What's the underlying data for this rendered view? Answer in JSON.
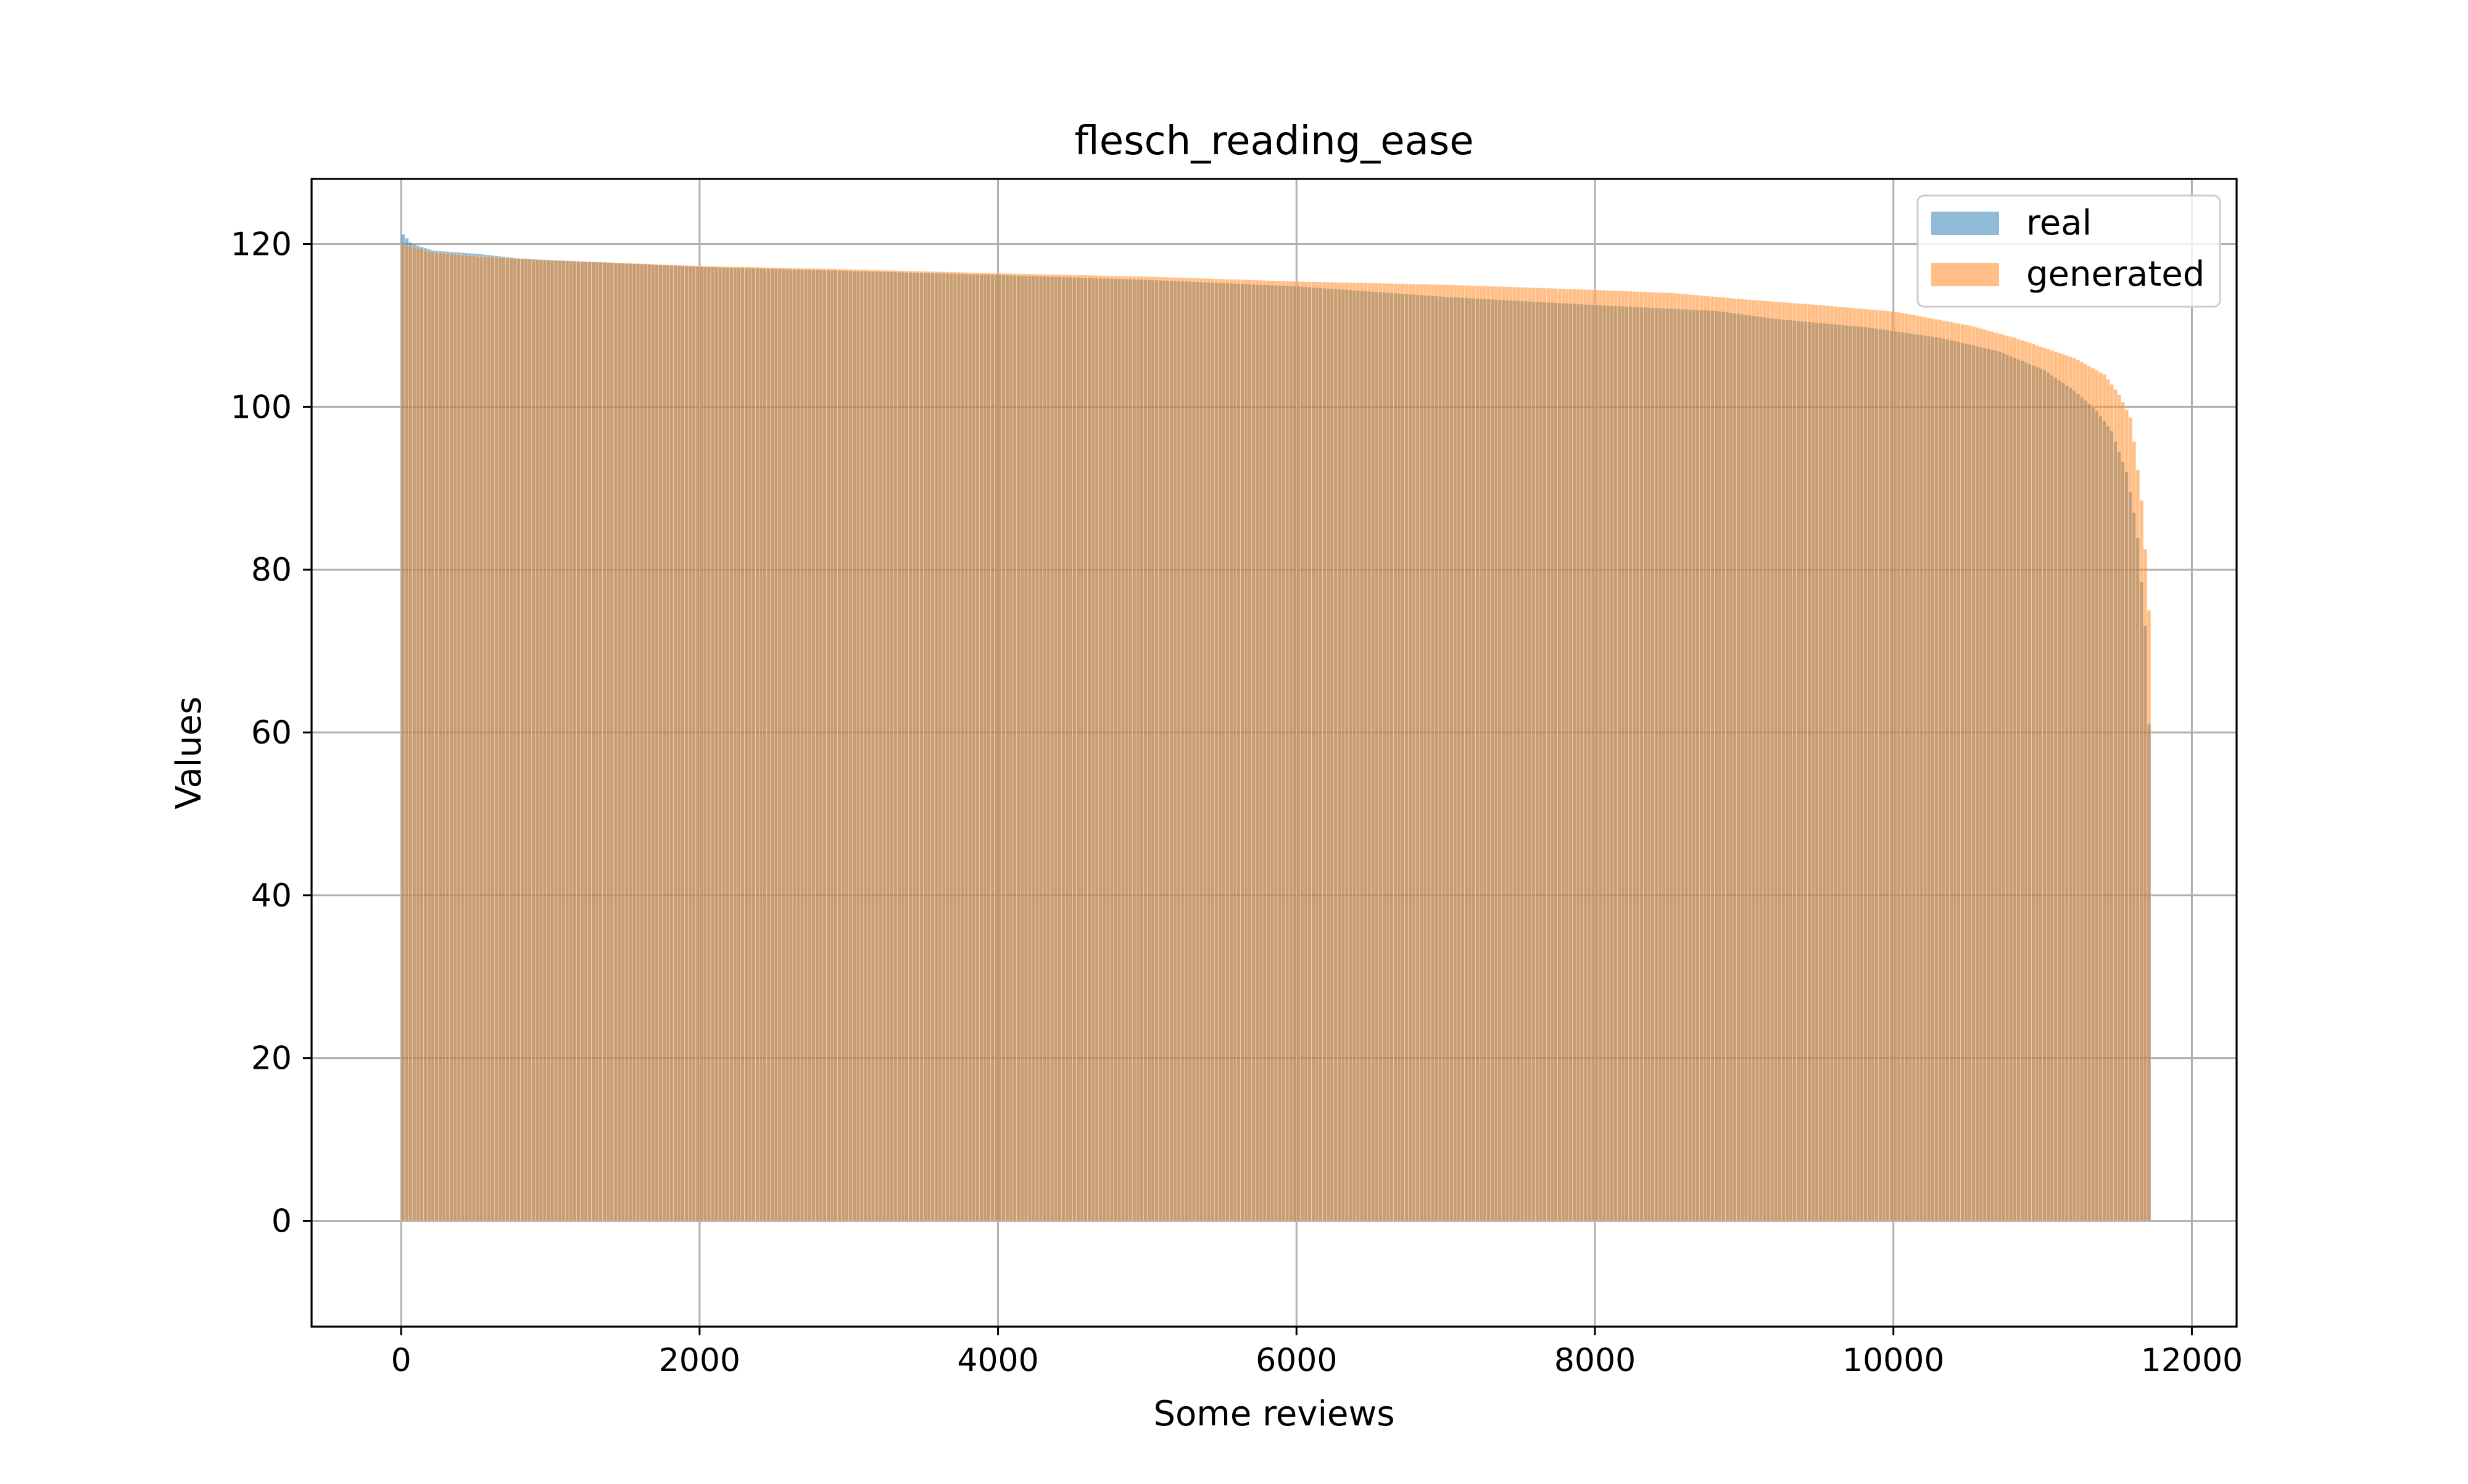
{
  "chart_data": {
    "type": "bar",
    "title": "flesch_reading_ease",
    "xlabel": "Some reviews",
    "ylabel": "Values",
    "xlim": [
      -600,
      12300
    ],
    "ylim": [
      -13,
      128
    ],
    "x_ticks": [
      0,
      2000,
      4000,
      6000,
      8000,
      10000,
      12000
    ],
    "x_tick_labels": [
      "0",
      "2000",
      "4000",
      "6000",
      "8000",
      "10000",
      "12000"
    ],
    "y_ticks": [
      0,
      20,
      40,
      60,
      80,
      100,
      120
    ],
    "y_tick_labels": [
      "0",
      "20",
      "40",
      "60",
      "80",
      "100",
      "120"
    ],
    "grid": true,
    "legend_position": "upper right",
    "legend": [
      "real",
      "generated"
    ],
    "sorted_descending": true,
    "series": [
      {
        "name": "real",
        "color": "#1f77b4",
        "opacity": 0.5,
        "n_points": 11720,
        "profile": [
          [
            0,
            121.2
          ],
          [
            50,
            120.2
          ],
          [
            100,
            119.8
          ],
          [
            200,
            119.2
          ],
          [
            500,
            118.8
          ],
          [
            800,
            118.2
          ],
          [
            1300,
            117.8
          ],
          [
            2000,
            117.2
          ],
          [
            3000,
            116.7
          ],
          [
            4000,
            116.2
          ],
          [
            5000,
            115.6
          ],
          [
            6000,
            114.8
          ],
          [
            7000,
            113.5
          ],
          [
            8000,
            112.5
          ],
          [
            8800,
            111.8
          ],
          [
            9200,
            110.8
          ],
          [
            9800,
            109.8
          ],
          [
            10300,
            108.5
          ],
          [
            10700,
            106.8
          ],
          [
            11000,
            104.5
          ],
          [
            11200,
            102.0
          ],
          [
            11350,
            99.5
          ],
          [
            11450,
            97.0
          ],
          [
            11550,
            92.0
          ],
          [
            11620,
            85.0
          ],
          [
            11680,
            72.0
          ],
          [
            11720,
            50.0
          ]
        ]
      },
      {
        "name": "generated",
        "color": "#ff7f0e",
        "opacity": 0.5,
        "n_points": 11720,
        "profile": [
          [
            0,
            120.0
          ],
          [
            200,
            119.0
          ],
          [
            500,
            118.5
          ],
          [
            1000,
            118.0
          ],
          [
            2000,
            117.3
          ],
          [
            3000,
            116.9
          ],
          [
            4000,
            116.4
          ],
          [
            5000,
            116.0
          ],
          [
            6000,
            115.4
          ],
          [
            7000,
            115.0
          ],
          [
            7800,
            114.5
          ],
          [
            8500,
            114.0
          ],
          [
            9000,
            113.2
          ],
          [
            9500,
            112.5
          ],
          [
            10000,
            111.7
          ],
          [
            10500,
            110.0
          ],
          [
            10800,
            108.5
          ],
          [
            11200,
            106.0
          ],
          [
            11400,
            104.0
          ],
          [
            11500,
            101.5
          ],
          [
            11580,
            98.5
          ],
          [
            11620,
            93.0
          ],
          [
            11660,
            87.0
          ],
          [
            11700,
            75.0
          ],
          [
            11720,
            55.0
          ]
        ]
      }
    ]
  }
}
